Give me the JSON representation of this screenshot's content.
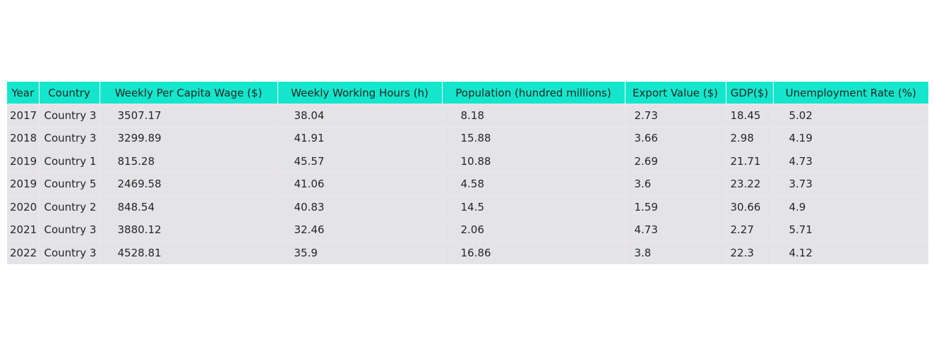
{
  "colors": {
    "header_bg": "#14e6cc",
    "cell_bg": "#e4e4e6"
  },
  "chart_data": {
    "type": "table",
    "columns": [
      "Year",
      "Country",
      "Weekly Per Capita Wage ($)",
      "Weekly Working Hours (h)",
      "Population (hundred millions)",
      "Export Value ($)",
      "GDP($)",
      "Unemployment Rate (%)"
    ],
    "rows": [
      [
        "2017",
        "Country 3",
        "3507.17",
        "38.04",
        "8.18",
        "2.73",
        "18.45",
        "5.02"
      ],
      [
        "2018",
        "Country 3",
        "3299.89",
        "41.91",
        "15.88",
        "3.66",
        "2.98",
        "4.19"
      ],
      [
        "2019",
        "Country 1",
        "815.28",
        "45.57",
        "10.88",
        "2.69",
        "21.71",
        "4.73"
      ],
      [
        "2019",
        "Country 5",
        "2469.58",
        "41.06",
        "4.58",
        "3.6",
        "23.22",
        "3.73"
      ],
      [
        "2020",
        "Country 2",
        "848.54",
        "40.83",
        "14.5",
        "1.59",
        "30.66",
        "4.9"
      ],
      [
        "2021",
        "Country 3",
        "3880.12",
        "32.46",
        "2.06",
        "4.73",
        "2.27",
        "5.71"
      ],
      [
        "2022",
        "Country 3",
        "4528.81",
        "35.9",
        "16.86",
        "3.8",
        "22.3",
        "4.12"
      ]
    ]
  }
}
